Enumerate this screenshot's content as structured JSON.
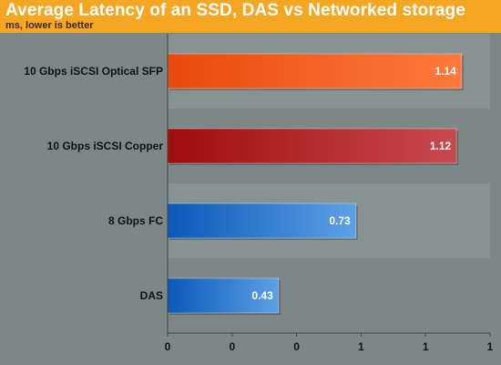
{
  "header": {
    "title": "Average Latency of an SSD, DAS vs Networked storage",
    "subtitle": "ms, lower is better"
  },
  "colors": {
    "header_bg": "#f5a623",
    "plot_bg": "#7d8787",
    "band_light": "#889292",
    "axis": "#444444"
  },
  "chart_data": {
    "type": "bar",
    "orientation": "horizontal",
    "title": "Average Latency of an SSD, DAS vs Networked storage",
    "subtitle": "ms, lower is better",
    "categories": [
      "10 Gbps iSCSI Optical SFP",
      "10 Gbps iSCSI Copper",
      "8 Gbps FC",
      "DAS"
    ],
    "values": [
      1.14,
      1.12,
      0.73,
      0.43
    ],
    "value_labels": [
      "1.14",
      "1.12",
      "0.73",
      "0.43"
    ],
    "bar_colors": [
      [
        "#e84a0c",
        "#ff7a3c"
      ],
      [
        "#a00d0d",
        "#c84a50"
      ],
      [
        "#0a58b8",
        "#5da0e6"
      ],
      [
        "#0a58b8",
        "#5da0e6"
      ]
    ],
    "xlim": [
      0,
      1.25
    ],
    "x_ticks": [
      0,
      0.25,
      0.5,
      0.75,
      1,
      1.25
    ],
    "x_tick_labels": [
      "0",
      "0",
      "0",
      "1",
      "1",
      "1"
    ],
    "grid": false,
    "legend": "none"
  }
}
